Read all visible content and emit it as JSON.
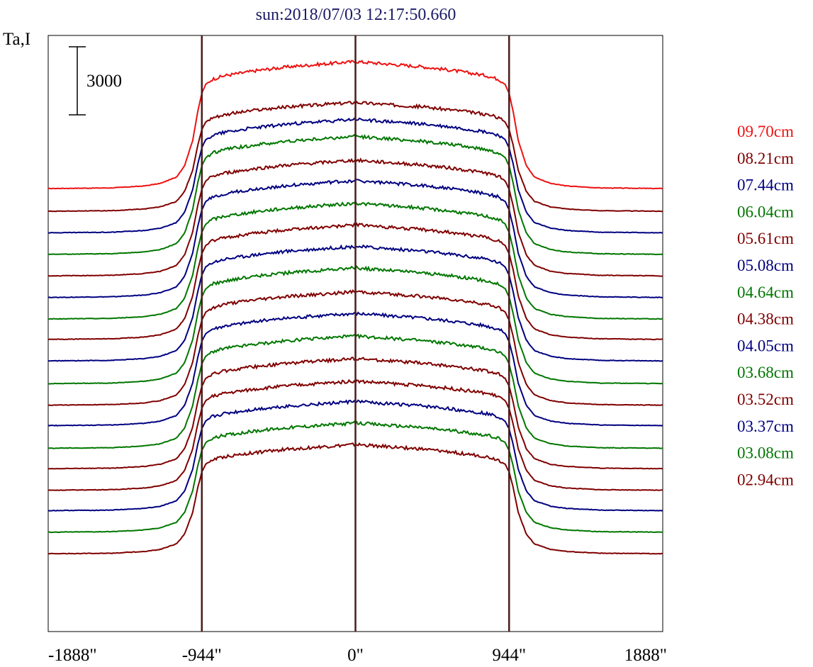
{
  "chart_data": {
    "type": "line",
    "title": "sun:2018/07/03 12:17:50.660",
    "ylabel": "Ta,I",
    "scale_bar": {
      "label": "3000",
      "value": 3000
    },
    "xlim": [
      -1888,
      1888
    ],
    "x_ticks": [
      {
        "value": -1888,
        "label": "-1888\""
      },
      {
        "value": -944,
        "label": "-944\""
      },
      {
        "value": 0,
        "label": "0\""
      },
      {
        "value": 944,
        "label": "944\""
      },
      {
        "value": 1888,
        "label": "1888\""
      }
    ],
    "vertical_markers": [
      -944,
      0,
      944
    ],
    "colors": {
      "red": "#ee1111",
      "maroon": "#800000",
      "navy": "#000080",
      "green": "#007700",
      "frame": "#000000",
      "marker": "#4a1c1c",
      "title": "#1a1a66"
    },
    "profile": {
      "x": [
        -1888,
        -1500,
        -1300,
        -1200,
        -1100,
        -1050,
        -1000,
        -970,
        -944,
        -920,
        -880,
        -800,
        -600,
        -400,
        -200,
        0,
        200,
        400,
        600,
        800,
        880,
        920,
        944,
        970,
        1000,
        1050,
        1100,
        1200,
        1300,
        1500,
        1888
      ],
      "shape": [
        0,
        0.005,
        0.02,
        0.04,
        0.09,
        0.18,
        0.38,
        0.6,
        0.75,
        0.82,
        0.86,
        0.89,
        0.93,
        0.96,
        0.98,
        1.0,
        0.98,
        0.96,
        0.93,
        0.89,
        0.86,
        0.82,
        0.75,
        0.6,
        0.38,
        0.18,
        0.09,
        0.04,
        0.02,
        0.005,
        0
      ]
    },
    "series": [
      {
        "name": "09.70cm",
        "color": "red",
        "baseline": 1000,
        "amplitude": 5600
      },
      {
        "name": "08.21cm",
        "color": "maroon",
        "baseline": 0,
        "amplitude": 4800
      },
      {
        "name": "07.44cm",
        "color": "navy",
        "baseline": -950,
        "amplitude": 5000
      },
      {
        "name": "06.04cm",
        "color": "green",
        "baseline": -1900,
        "amplitude": 5200
      },
      {
        "name": "05.61cm",
        "color": "maroon",
        "baseline": -2850,
        "amplitude": 5100
      },
      {
        "name": "05.08cm",
        "color": "navy",
        "baseline": -3800,
        "amplitude": 5150
      },
      {
        "name": "04.64cm",
        "color": "green",
        "baseline": -4750,
        "amplitude": 5100
      },
      {
        "name": "04.38cm",
        "color": "maroon",
        "baseline": -5650,
        "amplitude": 5050
      },
      {
        "name": "04.05cm",
        "color": "navy",
        "baseline": -6600,
        "amplitude": 5050
      },
      {
        "name": "03.68cm",
        "color": "green",
        "baseline": -7600,
        "amplitude": 5100
      },
      {
        "name": "03.52cm",
        "color": "maroon",
        "baseline": -8550,
        "amplitude": 5000
      },
      {
        "name": "03.37cm",
        "color": "navy",
        "baseline": -9450,
        "amplitude": 4950
      },
      {
        "name": "03.08cm",
        "color": "green",
        "baseline": -10450,
        "amplitude": 4950
      },
      {
        "name": "02.94cm",
        "color": "maroon",
        "baseline": -11350,
        "amplitude": 4850
      }
    ],
    "extra_traces": [
      {
        "color": "maroon",
        "baseline": -12300
      },
      {
        "color": "navy",
        "baseline": -13200
      },
      {
        "color": "green",
        "baseline": -14150
      },
      {
        "color": "maroon",
        "baseline": -15100
      }
    ]
  }
}
